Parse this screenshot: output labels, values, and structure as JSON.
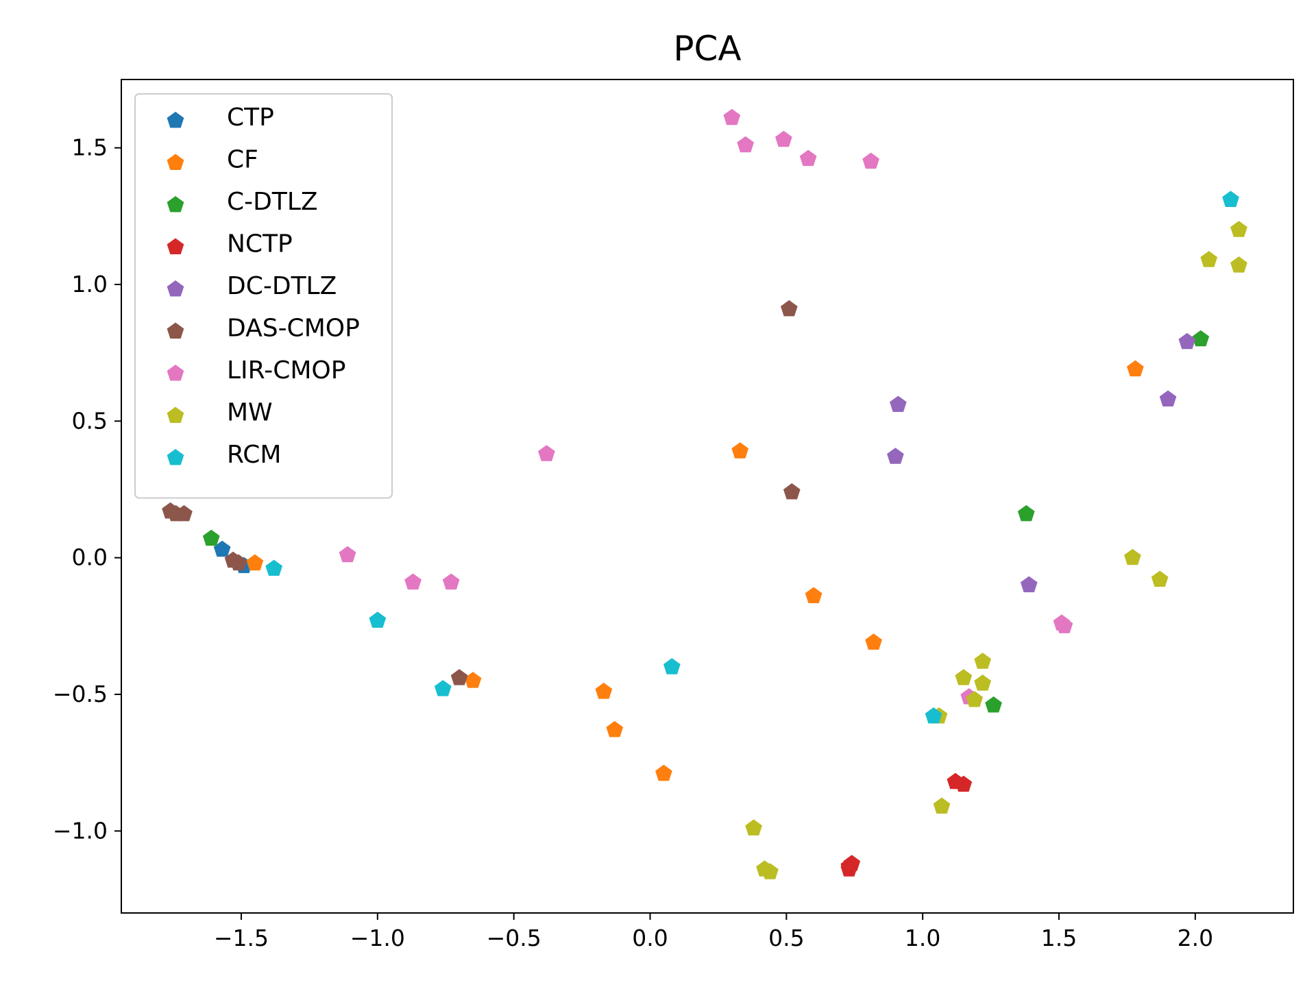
{
  "chart_data": {
    "type": "scatter",
    "title": "PCA",
    "xlabel": "",
    "ylabel": "",
    "xlim": [
      -1.94,
      2.36
    ],
    "ylim": [
      -1.3,
      1.75
    ],
    "xticks": [
      -1.5,
      -1.0,
      -0.5,
      0.0,
      0.5,
      1.0,
      1.5,
      2.0
    ],
    "yticks": [
      -1.0,
      -0.5,
      0.0,
      0.5,
      1.0,
      1.5
    ],
    "xtick_labels": [
      "−1.5",
      "−1.0",
      "−0.5",
      "0.0",
      "0.5",
      "1.0",
      "1.5",
      "2.0"
    ],
    "ytick_labels": [
      "−1.0",
      "−0.5",
      "0.0",
      "0.5",
      "1.0",
      "1.5"
    ],
    "grid": false,
    "legend_position": "top-left",
    "marker": "pentagon",
    "series": [
      {
        "name": "CTP",
        "color": "#1f77b4",
        "points": [
          [
            -1.57,
            0.03
          ],
          [
            -1.49,
            -0.03
          ]
        ]
      },
      {
        "name": "CF",
        "color": "#ff7f0e",
        "points": [
          [
            -1.45,
            -0.02
          ],
          [
            -0.65,
            -0.45
          ],
          [
            -0.17,
            -0.49
          ],
          [
            -0.13,
            -0.63
          ],
          [
            0.05,
            -0.79
          ],
          [
            0.33,
            0.39
          ],
          [
            0.6,
            -0.14
          ],
          [
            0.82,
            -0.31
          ],
          [
            1.78,
            0.69
          ]
        ]
      },
      {
        "name": "C-DTLZ",
        "color": "#2ca02c",
        "points": [
          [
            -1.61,
            0.07
          ],
          [
            1.38,
            0.16
          ],
          [
            1.26,
            -0.54
          ],
          [
            2.02,
            0.8
          ]
        ]
      },
      {
        "name": "NCTP",
        "color": "#d62728",
        "points": [
          [
            0.73,
            -1.14
          ],
          [
            0.74,
            -1.12
          ],
          [
            0.73,
            -1.13
          ],
          [
            1.12,
            -0.82
          ],
          [
            1.15,
            -0.83
          ]
        ]
      },
      {
        "name": "DC-DTLZ",
        "color": "#9467bd",
        "points": [
          [
            0.91,
            0.56
          ],
          [
            0.9,
            0.37
          ],
          [
            1.39,
            -0.1
          ],
          [
            1.9,
            0.58
          ],
          [
            1.97,
            0.79
          ]
        ]
      },
      {
        "name": "DAS-CMOP",
        "color": "#8c564b",
        "points": [
          [
            -1.76,
            0.17
          ],
          [
            -1.74,
            0.16
          ],
          [
            -1.71,
            0.16
          ],
          [
            -1.53,
            -0.01
          ],
          [
            -1.51,
            -0.02
          ],
          [
            -0.7,
            -0.44
          ],
          [
            0.51,
            0.91
          ],
          [
            0.52,
            0.24
          ]
        ]
      },
      {
        "name": "LIR-CMOP",
        "color": "#e377c2",
        "points": [
          [
            -1.11,
            0.01
          ],
          [
            -0.87,
            -0.09
          ],
          [
            -0.73,
            -0.09
          ],
          [
            -0.38,
            0.38
          ],
          [
            0.3,
            1.61
          ],
          [
            0.35,
            1.51
          ],
          [
            0.49,
            1.53
          ],
          [
            0.58,
            1.46
          ],
          [
            0.81,
            1.45
          ],
          [
            1.17,
            -0.51
          ],
          [
            1.51,
            -0.24
          ],
          [
            1.52,
            -0.25
          ]
        ]
      },
      {
        "name": "MW",
        "color": "#bcbd22",
        "points": [
          [
            0.38,
            -0.99
          ],
          [
            0.42,
            -1.14
          ],
          [
            0.44,
            -1.15
          ],
          [
            1.06,
            -0.58
          ],
          [
            1.07,
            -0.91
          ],
          [
            1.15,
            -0.44
          ],
          [
            1.19,
            -0.52
          ],
          [
            1.22,
            -0.38
          ],
          [
            1.22,
            -0.46
          ],
          [
            1.77,
            0.0
          ],
          [
            1.87,
            -0.08
          ],
          [
            2.05,
            1.09
          ],
          [
            2.16,
            1.2
          ],
          [
            2.16,
            1.07
          ]
        ]
      },
      {
        "name": "RCM",
        "color": "#17becf",
        "points": [
          [
            -1.38,
            -0.04
          ],
          [
            -1.0,
            -0.23
          ],
          [
            -0.76,
            -0.48
          ],
          [
            0.08,
            -0.4
          ],
          [
            1.04,
            -0.58
          ],
          [
            2.13,
            1.31
          ]
        ]
      }
    ]
  }
}
